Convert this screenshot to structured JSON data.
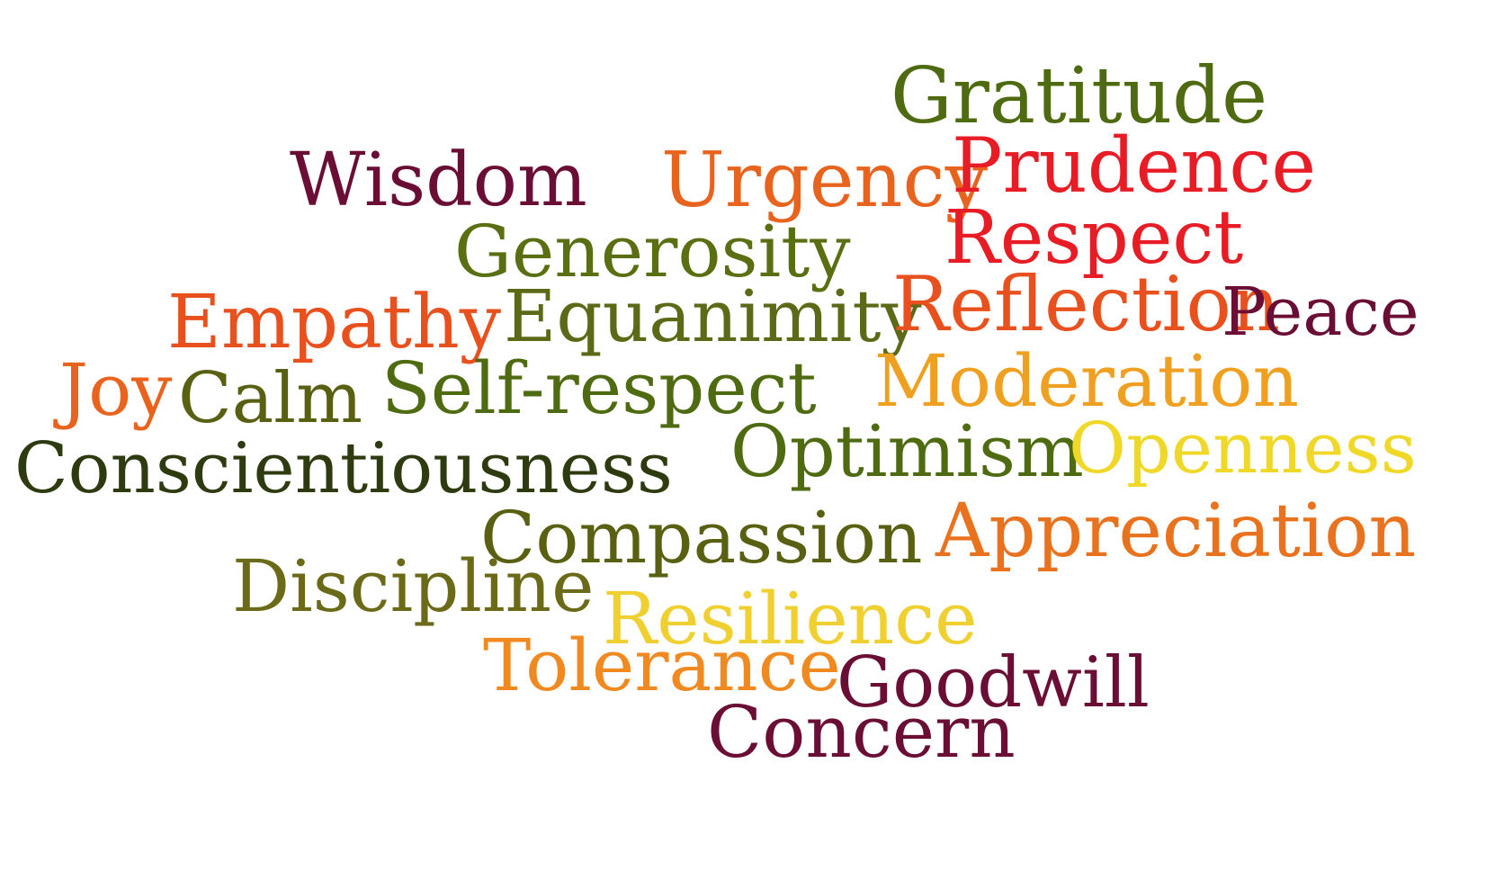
{
  "words": [
    {
      "text": "Gratitude",
      "color": "#4f6b12"
    },
    {
      "text": "Wisdom",
      "color": "#6b0e36"
    },
    {
      "text": "Urgency",
      "color": "#e8641e"
    },
    {
      "text": "Prudence",
      "color": "#e81c24"
    },
    {
      "text": "Respect",
      "color": "#e81c24"
    },
    {
      "text": "Generosity",
      "color": "#5a6e12"
    },
    {
      "text": "Empathy",
      "color": "#e8501e"
    },
    {
      "text": "Equanimity",
      "color": "#5c6a18"
    },
    {
      "text": "Reflection",
      "color": "#e8501e"
    },
    {
      "text": "Peace",
      "color": "#6b0e36"
    },
    {
      "text": "Joy",
      "color": "#e8641e"
    },
    {
      "text": "Calm",
      "color": "#5a6012"
    },
    {
      "text": "Self-respect",
      "color": "#4f6b12"
    },
    {
      "text": "Moderation",
      "color": "#f0a020"
    },
    {
      "text": "Conscientiousness",
      "color": "#2e3a10"
    },
    {
      "text": "Optimism",
      "color": "#4f6b12"
    },
    {
      "text": "Openness",
      "color": "#f0d828"
    },
    {
      "text": "Compassion",
      "color": "#5a6012"
    },
    {
      "text": "Appreciation",
      "color": "#e8721e"
    },
    {
      "text": "Discipline",
      "color": "#6b6a18"
    },
    {
      "text": "Resilience",
      "color": "#f0d030"
    },
    {
      "text": "Tolerance",
      "color": "#f08a20"
    },
    {
      "text": "Goodwill",
      "color": "#6b0e36"
    },
    {
      "text": "Concern",
      "color": "#6b0e36"
    }
  ]
}
